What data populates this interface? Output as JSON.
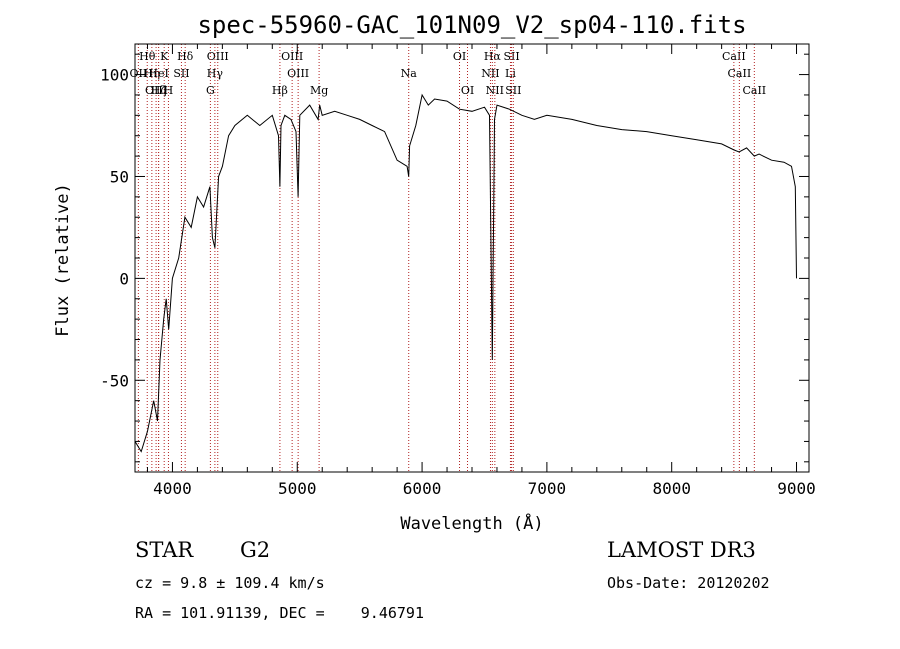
{
  "chart_data": {
    "type": "line",
    "title": "spec-55960-GAC_101N09_V2_sp04-110.fits",
    "xlabel": "Wavelength (Å)",
    "ylabel": "Flux (relative)",
    "xlim": [
      3700,
      9100
    ],
    "ylim": [
      -95,
      115
    ],
    "x_ticks": [
      4000,
      5000,
      6000,
      7000,
      8000,
      9000
    ],
    "y_ticks": [
      -50,
      0,
      50,
      100
    ],
    "series": [
      {
        "name": "spectrum",
        "x": [
          3700,
          3750,
          3800,
          3850,
          3880,
          3900,
          3930,
          3950,
          3970,
          4000,
          4050,
          4100,
          4150,
          4200,
          4250,
          4300,
          4320,
          4340,
          4370,
          4400,
          4450,
          4500,
          4600,
          4700,
          4800,
          4850,
          4861,
          4870,
          4900,
          4950,
          4990,
          5007,
          5020,
          5100,
          5167,
          5180,
          5200,
          5300,
          5400,
          5500,
          5600,
          5700,
          5800,
          5880,
          5893,
          5900,
          5950,
          6000,
          6050,
          6100,
          6200,
          6300,
          6400,
          6500,
          6540,
          6563,
          6580,
          6600,
          6700,
          6800,
          6900,
          7000,
          7200,
          7400,
          7600,
          7800,
          8000,
          8200,
          8400,
          8500,
          8540,
          8600,
          8662,
          8700,
          8800,
          8900,
          8960,
          8990,
          9000
        ],
        "y": [
          -80,
          -85,
          -75,
          -60,
          -70,
          -40,
          -20,
          -10,
          -25,
          0,
          10,
          30,
          25,
          40,
          35,
          45,
          20,
          15,
          50,
          55,
          70,
          75,
          80,
          75,
          80,
          70,
          45,
          75,
          80,
          78,
          72,
          40,
          80,
          85,
          78,
          85,
          80,
          82,
          80,
          78,
          75,
          72,
          58,
          55,
          50,
          65,
          75,
          90,
          85,
          88,
          87,
          83,
          82,
          84,
          80,
          -40,
          78,
          85,
          83,
          80,
          78,
          80,
          78,
          75,
          73,
          72,
          70,
          68,
          66,
          63,
          62,
          64,
          60,
          61,
          58,
          57,
          55,
          45,
          0
        ]
      }
    ],
    "spectral_lines": [
      {
        "label": "Hθ",
        "x": 3798,
        "row": 0
      },
      {
        "label": "K",
        "x": 3934,
        "row": 0
      },
      {
        "label": "Hδ",
        "x": 4102,
        "row": 0
      },
      {
        "label": "OIII",
        "x": 4363,
        "row": 0
      },
      {
        "label": "OIII",
        "x": 4959,
        "row": 0
      },
      {
        "label": "OI",
        "x": 6300,
        "row": 0
      },
      {
        "label": "Hα",
        "x": 6563,
        "row": 0
      },
      {
        "label": "SII",
        "x": 6717,
        "row": 0
      },
      {
        "label": "CaII",
        "x": 8498,
        "row": 0
      },
      {
        "label": "OII",
        "x": 3727,
        "row": 1
      },
      {
        "label": "Hη",
        "x": 3835,
        "row": 1
      },
      {
        "label": "HeI",
        "x": 3889,
        "row": 1
      },
      {
        "label": "SII",
        "x": 4072,
        "row": 1
      },
      {
        "label": "Hγ",
        "x": 4340,
        "row": 1
      },
      {
        "label": "OIII",
        "x": 5007,
        "row": 1
      },
      {
        "label": "Na",
        "x": 5893,
        "row": 1
      },
      {
        "label": "NII",
        "x": 6548,
        "row": 1
      },
      {
        "label": "Li",
        "x": 6708,
        "row": 1
      },
      {
        "label": "CaII",
        "x": 8542,
        "row": 1
      },
      {
        "label": "OIII",
        "x": 3869,
        "row": 2
      },
      {
        "label": "Hζ",
        "x": 3889,
        "row": 2
      },
      {
        "label": "H",
        "x": 3968,
        "row": 2
      },
      {
        "label": "G",
        "x": 4304,
        "row": 2
      },
      {
        "label": "Hβ",
        "x": 4861,
        "row": 2
      },
      {
        "label": "Mg",
        "x": 5175,
        "row": 2
      },
      {
        "label": "OI",
        "x": 6364,
        "row": 2
      },
      {
        "label": "NII",
        "x": 6583,
        "row": 2
      },
      {
        "label": "SII",
        "x": 6731,
        "row": 2
      },
      {
        "label": "CaII",
        "x": 8662,
        "row": 2
      }
    ]
  },
  "info": {
    "class": "STAR",
    "subclass": "G2",
    "survey": "LAMOST DR3",
    "cz": "cz = 9.8 ± 109.4 km/s",
    "obs_date": "Obs-Date: 20120202",
    "radec": "RA = 101.91139, DEC =    9.46791"
  }
}
